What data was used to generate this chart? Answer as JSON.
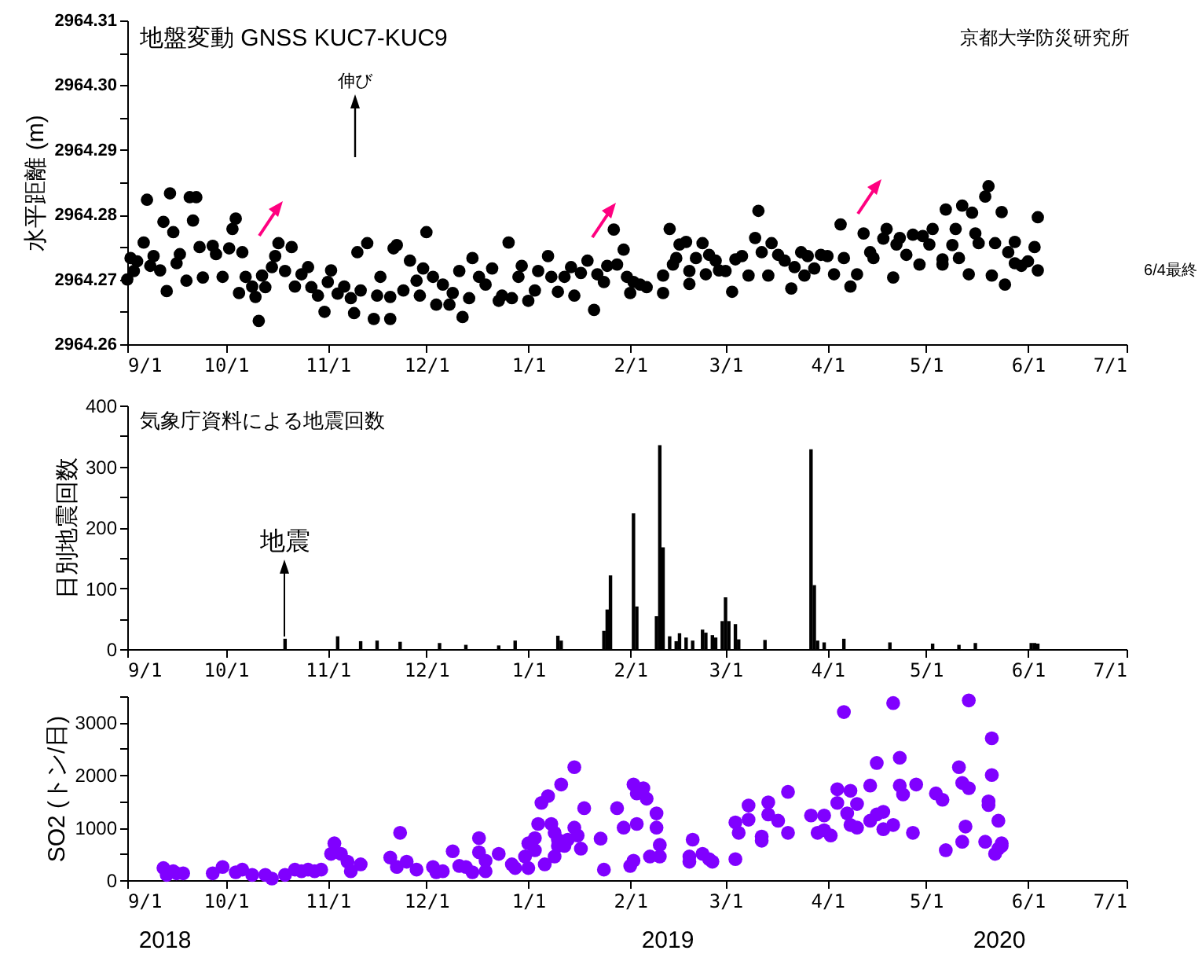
{
  "chart_data": [
    {
      "type": "scatter",
      "title": "地盤変動 GNSS KUC7-KUC9",
      "ylabel": "水平距離 (m)",
      "color": "#000000",
      "marker": "circle",
      "x": [
        "2019-09-01",
        "2019-09-02",
        "2019-09-03",
        "2019-09-04",
        "2019-09-06",
        "2019-09-07",
        "2019-09-08",
        "2019-09-09",
        "2019-09-11",
        "2019-09-12",
        "2019-09-13",
        "2019-09-14",
        "2019-09-15",
        "2019-09-16",
        "2019-09-17",
        "2019-09-19",
        "2019-09-20",
        "2019-09-21",
        "2019-09-22",
        "2019-09-23",
        "2019-09-24",
        "2019-09-27",
        "2019-09-28",
        "2019-09-30",
        "2019-10-02",
        "2019-10-03",
        "2019-10-04",
        "2019-10-05",
        "2019-10-06",
        "2019-10-07",
        "2019-10-09",
        "2019-10-10",
        "2019-10-11",
        "2019-10-12",
        "2019-10-13",
        "2019-10-15",
        "2019-10-16",
        "2019-10-17",
        "2019-10-19",
        "2019-10-21",
        "2019-10-22",
        "2019-10-24",
        "2019-10-26",
        "2019-10-27",
        "2019-10-29",
        "2019-10-31",
        "2019-11-01",
        "2019-11-02",
        "2019-11-04",
        "2019-11-06",
        "2019-11-08",
        "2019-11-09",
        "2019-11-10",
        "2019-11-11",
        "2019-11-13",
        "2019-11-15",
        "2019-11-16",
        "2019-11-17",
        "2019-11-20",
        "2019-11-20",
        "2019-11-21",
        "2019-11-22",
        "2019-11-24",
        "2019-11-26",
        "2019-11-28",
        "2019-11-29",
        "2019-11-30",
        "2019-12-01",
        "2019-12-03",
        "2019-12-04",
        "2019-12-06",
        "2019-12-08",
        "2019-12-09",
        "2019-12-11",
        "2019-12-12",
        "2019-12-14",
        "2019-12-15",
        "2019-12-17",
        "2019-12-19",
        "2019-12-21",
        "2019-12-23",
        "2019-12-24",
        "2019-12-26",
        "2019-12-27",
        "2019-12-29",
        "2019-12-30",
        "2020-01-01",
        "2020-01-03",
        "2020-01-04",
        "2020-01-07",
        "2020-01-08",
        "2020-01-10",
        "2020-01-12",
        "2020-01-14",
        "2020-01-15",
        "2020-01-17",
        "2020-01-19",
        "2020-01-21",
        "2020-01-22",
        "2020-01-24",
        "2020-01-25",
        "2020-01-27",
        "2020-01-28",
        "2020-01-30",
        "2020-01-31",
        "2020-02-01",
        "2020-02-02",
        "2020-02-04",
        "2020-02-06",
        "2020-02-11",
        "2020-02-11",
        "2020-02-13",
        "2020-02-14",
        "2020-02-15",
        "2020-02-16",
        "2020-02-18",
        "2020-02-19",
        "2020-02-19",
        "2020-02-21",
        "2020-02-23",
        "2020-02-24",
        "2020-02-25",
        "2020-02-27",
        "2020-02-28",
        "2020-03-01",
        "2020-03-03",
        "2020-03-04",
        "2020-03-06",
        "2020-03-08",
        "2020-03-10",
        "2020-03-11",
        "2020-03-12",
        "2020-03-14",
        "2020-03-15",
        "2020-03-17",
        "2020-03-19",
        "2020-03-21",
        "2020-03-22",
        "2020-03-24",
        "2020-03-25",
        "2020-03-26",
        "2020-03-28",
        "2020-03-30",
        "2020-04-01",
        "2020-04-03",
        "2020-04-05",
        "2020-04-06",
        "2020-04-08",
        "2020-04-10",
        "2020-04-12",
        "2020-04-14",
        "2020-04-15",
        "2020-04-18",
        "2020-04-19",
        "2020-04-21",
        "2020-04-22",
        "2020-04-23",
        "2020-04-25",
        "2020-04-27",
        "2020-04-29",
        "2020-04-30",
        "2020-05-02",
        "2020-05-03",
        "2020-05-06",
        "2020-05-06",
        "2020-05-07",
        "2020-05-09",
        "2020-05-10",
        "2020-05-11",
        "2020-05-12",
        "2020-05-14",
        "2020-05-15",
        "2020-05-16",
        "2020-05-17",
        "2020-05-19",
        "2020-05-20",
        "2020-05-21",
        "2020-05-22",
        "2020-05-24",
        "2020-05-25",
        "2020-05-26",
        "2020-05-28",
        "2020-05-28",
        "2020-05-30",
        "2020-06-01",
        "2020-06-03",
        "2020-06-04",
        "2020-06-04"
      ],
      "values": [
        2964.27,
        2964.2733,
        2964.2713,
        2964.2728,
        2964.2757,
        2964.2823,
        2964.2721,
        2964.2736,
        2964.2714,
        2964.2789,
        2964.2682,
        2964.2833,
        2964.2773,
        2964.2725,
        2964.2739,
        2964.2698,
        2964.2827,
        2964.2791,
        2964.2827,
        2964.275,
        2964.2703,
        2964.2752,
        2964.2739,
        2964.2704,
        2964.2748,
        2964.2778,
        2964.2794,
        2964.2679,
        2964.2742,
        2964.2704,
        2964.2689,
        2964.2673,
        2964.2636,
        2964.2706,
        2964.2688,
        2964.2719,
        2964.2736,
        2964.2756,
        2964.2713,
        2964.275,
        2964.2689,
        2964.2708,
        2964.2719,
        2964.2688,
        2964.2675,
        2964.265,
        2964.2696,
        2964.2714,
        2964.2678,
        2964.2689,
        2964.2671,
        2964.2648,
        2964.2742,
        2964.2683,
        2964.2756,
        2964.2639,
        2964.2675,
        2964.2704,
        2964.2639,
        2964.2673,
        2964.2748,
        2964.2753,
        2964.2683,
        2964.2729,
        2964.2698,
        2964.2675,
        2964.2717,
        2964.2773,
        2964.2704,
        2964.2661,
        2964.2692,
        2964.2661,
        2964.2679,
        2964.2713,
        2964.2642,
        2964.2671,
        2964.2733,
        2964.2704,
        2964.2692,
        2964.2717,
        2964.2667,
        2964.2675,
        2964.2757,
        2964.2671,
        2964.2704,
        2964.2721,
        2964.2667,
        2964.2683,
        2964.2713,
        2964.2736,
        2964.2704,
        2964.2681,
        2964.2704,
        2964.2719,
        2964.2675,
        2964.271,
        2964.2729,
        2964.2653,
        2964.2708,
        2964.2696,
        2964.2721,
        2964.2777,
        2964.2723,
        2964.2746,
        2964.2704,
        2964.2679,
        2964.2696,
        2964.2692,
        2964.2688,
        2964.2679,
        2964.2706,
        2964.2778,
        2964.2723,
        2964.2733,
        2964.2754,
        2964.2758,
        2964.2693,
        2964.2713,
        2964.2733,
        2964.2756,
        2964.2708,
        2964.2738,
        2964.2729,
        2964.2714,
        2964.2713,
        2964.2681,
        2964.2731,
        2964.2736,
        2964.2706,
        2964.2764,
        2964.2806,
        2964.2742,
        2964.2706,
        2964.2756,
        2964.2738,
        2964.2729,
        2964.2686,
        2964.2719,
        2964.2742,
        2964.2706,
        2964.2736,
        2964.2717,
        2964.2738,
        2964.2736,
        2964.2708,
        2964.2785,
        2964.2733,
        2964.2689,
        2964.2708,
        2964.2771,
        2964.2742,
        2964.2733,
        2964.2763,
        2964.2778,
        2964.2703,
        2964.2754,
        2964.2764,
        2964.2738,
        2964.2769,
        2964.2723,
        2964.2767,
        2964.2754,
        2964.2778,
        2964.2731,
        2964.2723,
        2964.2808,
        2964.2753,
        2964.2778,
        2964.2733,
        2964.2814,
        2964.2708,
        2964.2803,
        2964.2771,
        2964.2756,
        2964.2828,
        2964.2844,
        2964.2706,
        2964.2756,
        2964.2804,
        2964.2692,
        2964.2742,
        2964.2758,
        2964.2725,
        2964.2721,
        2964.2728,
        2964.275,
        2964.2796,
        2964.2714
      ],
      "xlim": [
        "2019-09-01",
        "2020-07-01"
      ],
      "xticks": [
        {
          "value": "2019-09-01",
          "label": "9/1"
        },
        {
          "value": "2019-10-01",
          "label": "10/1"
        },
        {
          "value": "2019-11-01",
          "label": "11/1"
        },
        {
          "value": "2019-12-01",
          "label": "12/1"
        },
        {
          "value": "2020-01-01",
          "label": "1/1"
        },
        {
          "value": "2020-02-01",
          "label": "2/1"
        },
        {
          "value": "2020-03-01",
          "label": "3/1"
        },
        {
          "value": "2020-04-01",
          "label": "4/1"
        },
        {
          "value": "2020-05-01",
          "label": "5/1"
        },
        {
          "value": "2020-06-01",
          "label": "6/1"
        },
        {
          "value": "2020-07-01",
          "label": "7/1"
        }
      ],
      "ylim": [
        2964.26,
        2964.31
      ],
      "yticks": [
        2964.26,
        {
          "value": 2964.265,
          "label": null
        },
        2964.27,
        {
          "value": 2964.275,
          "label": null
        },
        2964.28,
        {
          "value": 2964.285,
          "label": null
        },
        2964.29,
        {
          "value": 2964.295,
          "label": null
        },
        {
          "value": 2964.3,
          "label": "2964.30"
        },
        {
          "value": 2964.305,
          "label": null
        },
        2964.31
      ],
      "annotations": [
        "京都大学防災研究所",
        "伸び",
        "6/4最終"
      ]
    },
    {
      "type": "bar",
      "title": "気象庁資料による地震回数",
      "ylabel": "日別地震回数",
      "color": "#000000",
      "x": [
        "2019-10-19",
        "2019-11-04",
        "2019-11-11",
        "2019-11-16",
        "2019-11-23",
        "2019-12-05",
        "2019-12-13",
        "2019-12-23",
        "2019-12-28",
        "2020-01-10",
        "2020-01-11",
        "2020-01-24",
        "2020-01-25",
        "2020-01-26",
        "2020-02-02",
        "2020-02-03",
        "2020-02-09",
        "2020-02-10",
        "2020-02-11",
        "2020-02-13",
        "2020-02-15",
        "2020-02-16",
        "2020-02-18",
        "2020-02-20",
        "2020-02-23",
        "2020-02-24",
        "2020-02-26",
        "2020-02-27",
        "2020-02-29",
        "2020-03-01",
        "2020-03-02",
        "2020-03-04",
        "2020-03-05",
        "2020-03-13",
        "2020-03-27",
        "2020-03-28",
        "2020-03-29",
        "2020-03-31",
        "2020-04-06",
        "2020-04-20",
        "2020-05-03",
        "2020-05-11",
        "2020-05-16",
        "2020-06-02",
        "2020-06-03",
        "2020-06-04"
      ],
      "values": [
        17,
        21,
        13,
        14,
        12,
        10,
        7,
        6,
        14,
        22,
        14,
        30,
        65,
        121,
        223,
        70,
        54,
        335,
        167,
        21,
        13,
        26,
        19,
        14,
        32,
        27,
        23,
        19,
        46,
        85,
        46,
        41,
        16,
        15,
        328,
        105,
        14,
        11,
        17,
        11,
        9,
        7,
        10,
        10,
        10,
        9
      ],
      "xlim": [
        "2019-09-01",
        "2020-07-01"
      ],
      "xticks": [
        {
          "value": "2019-09-01",
          "label": "9/1"
        },
        {
          "value": "2019-10-01",
          "label": "10/1"
        },
        {
          "value": "2019-11-01",
          "label": "11/1"
        },
        {
          "value": "2019-12-01",
          "label": "12/1"
        },
        {
          "value": "2020-01-01",
          "label": "1/1"
        },
        {
          "value": "2020-02-01",
          "label": "2/1"
        },
        {
          "value": "2020-03-01",
          "label": "3/1"
        },
        {
          "value": "2020-04-01",
          "label": "4/1"
        },
        {
          "value": "2020-05-01",
          "label": "5/1"
        },
        {
          "value": "2020-06-01",
          "label": "6/1"
        },
        {
          "value": "2020-07-01",
          "label": "7/1"
        }
      ],
      "ylim": [
        0,
        400
      ],
      "yticks": [
        0,
        {
          "value": 50,
          "label": null
        },
        100,
        {
          "value": 150,
          "label": null
        },
        200,
        {
          "value": 250,
          "label": null
        },
        300,
        {
          "value": 350,
          "label": null
        },
        400
      ],
      "annotations": [
        {
          "text": "地震",
          "x": "2019-10-19",
          "y": 17
        }
      ]
    },
    {
      "type": "scatter",
      "ylabel": "SO2 (トン/日)",
      "color": "#8000ff",
      "marker": "circle",
      "x": [
        "2019-09-12",
        "2019-09-13",
        "2019-09-15",
        "2019-09-16",
        "2019-09-18",
        "2019-09-27",
        "2019-09-30",
        "2019-10-04",
        "2019-10-06",
        "2019-10-09",
        "2019-10-13",
        "2019-10-15",
        "2019-10-19",
        "2019-10-22",
        "2019-10-24",
        "2019-10-26",
        "2019-10-28",
        "2019-10-30",
        "2019-11-02",
        "2019-11-03",
        "2019-11-05",
        "2019-11-07",
        "2019-11-08",
        "2019-11-11",
        "2019-11-20",
        "2019-11-22",
        "2019-11-23",
        "2019-11-25",
        "2019-11-28",
        "2019-12-03",
        "2019-12-04",
        "2019-12-06",
        "2019-12-09",
        "2019-12-11",
        "2019-12-13",
        "2019-12-15",
        "2019-12-17",
        "2019-12-17",
        "2019-12-19",
        "2019-12-19",
        "2019-12-23",
        "2019-12-27",
        "2019-12-28",
        "2019-12-31",
        "2020-01-01",
        "2020-01-01",
        "2020-01-03",
        "2020-01-03",
        "2020-01-04",
        "2020-01-05",
        "2020-01-06",
        "2020-01-07",
        "2020-01-08",
        "2020-01-09",
        "2020-01-09",
        "2020-01-10",
        "2020-01-10",
        "2020-01-11",
        "2020-01-12",
        "2020-01-13",
        "2020-01-15",
        "2020-01-15",
        "2020-01-16",
        "2020-01-17",
        "2020-01-18",
        "2020-01-23",
        "2020-01-24",
        "2020-01-28",
        "2020-01-30",
        "2020-02-01",
        "2020-02-02",
        "2020-02-02",
        "2020-02-03",
        "2020-02-03",
        "2020-02-05",
        "2020-02-06",
        "2020-02-07",
        "2020-02-09",
        "2020-02-09",
        "2020-02-10",
        "2020-02-10",
        "2020-02-19",
        "2020-02-19",
        "2020-02-20",
        "2020-02-23",
        "2020-02-25",
        "2020-02-26",
        "2020-03-04",
        "2020-03-04",
        "2020-03-05",
        "2020-03-08",
        "2020-03-08",
        "2020-03-12",
        "2020-03-12",
        "2020-03-14",
        "2020-03-14",
        "2020-03-17",
        "2020-03-20",
        "2020-03-20",
        "2020-03-27",
        "2020-03-29",
        "2020-03-31",
        "2020-03-31",
        "2020-04-02",
        "2020-04-04",
        "2020-04-04",
        "2020-04-06",
        "2020-04-07",
        "2020-04-08",
        "2020-04-08",
        "2020-04-10",
        "2020-04-10",
        "2020-04-14",
        "2020-04-14",
        "2020-04-16",
        "2020-04-16",
        "2020-04-18",
        "2020-04-18",
        "2020-04-21",
        "2020-04-21",
        "2020-04-23",
        "2020-04-23",
        "2020-04-24",
        "2020-04-27",
        "2020-04-28",
        "2020-05-04",
        "2020-05-06",
        "2020-05-07",
        "2020-05-11",
        "2020-05-12",
        "2020-05-12",
        "2020-05-13",
        "2020-05-14",
        "2020-05-14",
        "2020-05-19",
        "2020-05-20",
        "2020-05-20",
        "2020-05-21",
        "2020-05-21",
        "2020-05-22",
        "2020-05-23",
        "2020-05-23",
        "2020-05-24",
        "2020-05-24"
      ],
      "values": [
        230,
        100,
        170,
        130,
        130,
        130,
        250,
        150,
        200,
        100,
        100,
        30,
        100,
        200,
        170,
        200,
        170,
        200,
        500,
        700,
        500,
        350,
        170,
        300,
        430,
        250,
        900,
        350,
        200,
        250,
        150,
        170,
        550,
        270,
        250,
        150,
        800,
        530,
        370,
        170,
        500,
        300,
        230,
        450,
        230,
        700,
        570,
        800,
        1070,
        1470,
        300,
        1600,
        1070,
        900,
        450,
        650,
        770,
        1820,
        650,
        770,
        2150,
        1000,
        850,
        600,
        1370,
        790,
        200,
        1370,
        1000,
        270,
        370,
        1820,
        1650,
        1070,
        1750,
        1550,
        450,
        1270,
        1000,
        670,
        450,
        450,
        350,
        770,
        500,
        400,
        350,
        400,
        1100,
        900,
        1420,
        1150,
        750,
        830,
        1480,
        1250,
        1130,
        1680,
        900,
        1230,
        900,
        1230,
        950,
        850,
        1730,
        1470,
        3200,
        1270,
        1700,
        1050,
        1450,
        1000,
        1800,
        1130,
        2230,
        1250,
        1300,
        970,
        3370,
        1050,
        2330,
        1800,
        1630,
        900,
        1820,
        1650,
        1530,
        570,
        2150,
        1850,
        730,
        1020,
        1750,
        3420,
        730,
        1430,
        1500,
        2700,
        2000,
        500,
        600,
        1130,
        700,
        650
      ],
      "xlim": [
        "2019-09-01",
        "2020-07-01"
      ],
      "xticks": [
        {
          "value": "2019-09-01",
          "label": "9/1"
        },
        {
          "value": "2019-10-01",
          "label": "10/1"
        },
        {
          "value": "2019-11-01",
          "label": "11/1"
        },
        {
          "value": "2019-12-01",
          "label": "12/1"
        },
        {
          "value": "2020-01-01",
          "label": "1/1"
        },
        {
          "value": "2020-02-01",
          "label": "2/1"
        },
        {
          "value": "2020-03-01",
          "label": "3/1"
        },
        {
          "value": "2020-04-01",
          "label": "4/1"
        },
        {
          "value": "2020-05-01",
          "label": "5/1"
        },
        {
          "value": "2020-06-01",
          "label": "6/1"
        },
        {
          "value": "2020-07-01",
          "label": "7/1"
        }
      ],
      "ylim": [
        0,
        3500
      ],
      "yticks": [
        0,
        {
          "value": 500,
          "label": null
        },
        1000,
        {
          "value": 1500,
          "label": null
        },
        2000,
        {
          "value": 2500,
          "label": null
        },
        3000,
        {
          "value": 3500,
          "label": null
        }
      ],
      "annotations": [
        "2018",
        "2019",
        "2020"
      ]
    }
  ]
}
